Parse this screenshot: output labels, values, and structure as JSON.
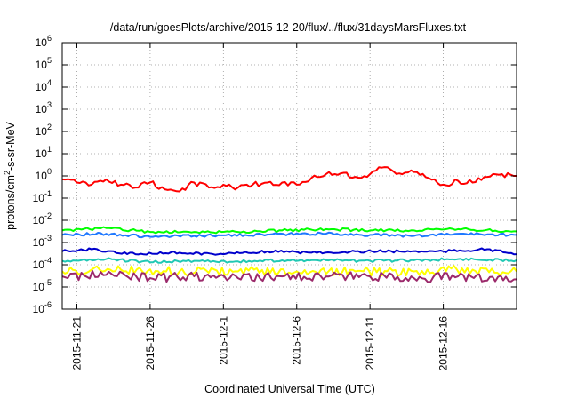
{
  "chart_data": {
    "type": "line",
    "title": "/data/run/goesPlots/archive/2015-12-20/flux/../flux/31daysMarsFluxes.txt",
    "xlabel": "Coordinated Universal Time (UTC)",
    "ylabel_base": "protons/cm",
    "ylabel_sup": "2",
    "ylabel_rest": "-s-sr-MeV",
    "yscale": "log",
    "ylim": [
      1e-06,
      1000000.0
    ],
    "xlim": [
      "2015-11-20",
      "2015-12-21"
    ],
    "grid": true,
    "x_ticks": [
      {
        "date": "2015-11-21",
        "label": "2015-11-21"
      },
      {
        "date": "2015-11-26",
        "label": "2015-11-26"
      },
      {
        "date": "2015-12-01",
        "label": "2015-12-1"
      },
      {
        "date": "2015-12-06",
        "label": "2015-12-6"
      },
      {
        "date": "2015-12-11",
        "label": "2015-12-11"
      },
      {
        "date": "2015-12-16",
        "label": "2015-12-16"
      }
    ],
    "y_ticks": [
      {
        "exp": -6
      },
      {
        "exp": -5
      },
      {
        "exp": -4
      },
      {
        "exp": -3
      },
      {
        "exp": -2
      },
      {
        "exp": -1
      },
      {
        "exp": 0
      },
      {
        "exp": 1
      },
      {
        "exp": 2
      },
      {
        "exp": 3
      },
      {
        "exp": 4
      },
      {
        "exp": 5
      },
      {
        "exp": 6
      }
    ],
    "series": [
      {
        "color": "#ff0000",
        "values": [
          [
            "2015-11-20",
            0.7
          ],
          [
            "2015-11-21",
            0.5
          ],
          [
            "2015-11-22",
            0.4
          ],
          [
            "2015-11-23",
            0.7
          ],
          [
            "2015-11-24",
            0.4
          ],
          [
            "2015-11-25",
            0.3
          ],
          [
            "2015-11-26",
            0.5
          ],
          [
            "2015-11-27",
            0.25
          ],
          [
            "2015-11-28",
            0.2
          ],
          [
            "2015-11-29",
            0.5
          ],
          [
            "2015-11-30",
            0.3
          ],
          [
            "2015-12-01",
            0.4
          ],
          [
            "2015-12-02",
            0.3
          ],
          [
            "2015-12-03",
            0.4
          ],
          [
            "2015-12-04",
            0.5
          ],
          [
            "2015-12-05",
            0.5
          ],
          [
            "2015-12-06",
            0.4
          ],
          [
            "2015-12-07",
            0.8
          ],
          [
            "2015-12-08",
            1.2
          ],
          [
            "2015-12-09",
            1.3
          ],
          [
            "2015-12-10",
            0.9
          ],
          [
            "2015-12-11",
            1.2
          ],
          [
            "2015-12-12",
            2.5
          ],
          [
            "2015-12-13",
            1.3
          ],
          [
            "2015-12-14",
            1.5
          ],
          [
            "2015-12-15",
            0.8
          ],
          [
            "2015-12-16",
            0.4
          ],
          [
            "2015-12-17",
            0.6
          ],
          [
            "2015-12-18",
            0.5
          ],
          [
            "2015-12-19",
            0.9
          ],
          [
            "2015-12-20",
            1.2
          ],
          [
            "2015-12-21",
            1.0
          ]
        ]
      },
      {
        "color": "#00ff00",
        "values": [
          [
            "2015-11-20",
            0.0035
          ],
          [
            "2015-11-23",
            0.0045
          ],
          [
            "2015-11-26",
            0.003
          ],
          [
            "2015-11-29",
            0.003
          ],
          [
            "2015-12-02",
            0.003
          ],
          [
            "2015-12-05",
            0.0035
          ],
          [
            "2015-12-08",
            0.004
          ],
          [
            "2015-12-11",
            0.0035
          ],
          [
            "2015-12-14",
            0.0035
          ],
          [
            "2015-12-17",
            0.004
          ],
          [
            "2015-12-21",
            0.0032
          ]
        ]
      },
      {
        "color": "#1e78ff",
        "values": [
          [
            "2015-11-20",
            0.0022
          ],
          [
            "2015-11-23",
            0.0025
          ],
          [
            "2015-11-26",
            0.0018
          ],
          [
            "2015-11-29",
            0.002
          ],
          [
            "2015-12-01",
            0.0021
          ],
          [
            "2015-12-04",
            0.0023
          ],
          [
            "2015-12-08",
            0.0025
          ],
          [
            "2015-12-11",
            0.0022
          ],
          [
            "2015-12-14",
            0.002
          ],
          [
            "2015-12-17",
            0.0025
          ],
          [
            "2015-12-21",
            0.0022
          ]
        ]
      },
      {
        "color": "#0000cc",
        "values": [
          [
            "2015-11-20",
            0.0004
          ],
          [
            "2015-11-22",
            0.0005
          ],
          [
            "2015-11-25",
            0.0003
          ],
          [
            "2015-11-28",
            0.00035
          ],
          [
            "2015-12-01",
            0.0003
          ],
          [
            "2015-12-04",
            0.0004
          ],
          [
            "2015-12-07",
            0.00035
          ],
          [
            "2015-12-10",
            0.0004
          ],
          [
            "2015-12-13",
            0.0004
          ],
          [
            "2015-12-16",
            0.0004
          ],
          [
            "2015-12-19",
            0.0005
          ],
          [
            "2015-12-21",
            0.0003
          ]
        ]
      },
      {
        "color": "#20c8b4",
        "values": [
          [
            "2015-11-20",
            0.00015
          ],
          [
            "2015-11-23",
            0.00018
          ],
          [
            "2015-11-26",
            0.00013
          ],
          [
            "2015-11-29",
            0.00015
          ],
          [
            "2015-12-02",
            0.00014
          ],
          [
            "2015-12-05",
            0.00016
          ],
          [
            "2015-12-08",
            0.00016
          ],
          [
            "2015-12-11",
            0.00015
          ],
          [
            "2015-12-14",
            0.00016
          ],
          [
            "2015-12-17",
            0.00018
          ],
          [
            "2015-12-21",
            0.00016
          ]
        ]
      },
      {
        "color": "#ffff00",
        "values": [
          [
            "2015-11-20",
            5e-05
          ],
          [
            "2015-11-24",
            6e-05
          ],
          [
            "2015-11-28",
            5e-05
          ],
          [
            "2015-12-02",
            5e-05
          ],
          [
            "2015-12-06",
            5e-05
          ],
          [
            "2015-12-10",
            5e-05
          ],
          [
            "2015-12-14",
            5e-05
          ],
          [
            "2015-12-18",
            6e-05
          ],
          [
            "2015-12-21",
            5e-05
          ]
        ]
      },
      {
        "color": "#9b2a6b",
        "values": [
          [
            "2015-11-20",
            3e-05
          ],
          [
            "2015-11-23",
            3.5e-05
          ],
          [
            "2015-11-26",
            2.5e-05
          ],
          [
            "2015-11-29",
            3e-05
          ],
          [
            "2015-12-02",
            2.5e-05
          ],
          [
            "2015-12-05",
            3e-05
          ],
          [
            "2015-12-08",
            3e-05
          ],
          [
            "2015-12-11",
            3e-05
          ],
          [
            "2015-12-14",
            2.5e-05
          ],
          [
            "2015-12-17",
            3e-05
          ],
          [
            "2015-12-21",
            2.2e-05
          ]
        ]
      }
    ]
  }
}
